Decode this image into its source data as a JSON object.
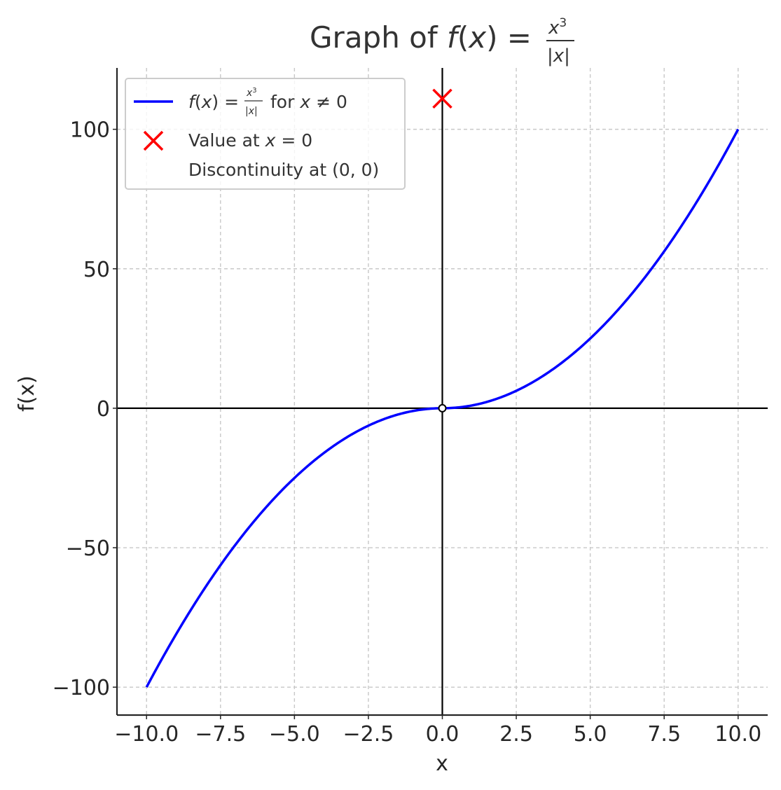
{
  "chart_data": {
    "type": "line",
    "title": "Graph of f(x) = x³/|x|",
    "xlabel": "x",
    "ylabel": "f(x)",
    "xlim": [
      -11,
      11
    ],
    "ylim": [
      -110,
      122
    ],
    "xticks": [
      -10.0,
      -7.5,
      -5.0,
      -2.5,
      0.0,
      2.5,
      5.0,
      7.5,
      10.0
    ],
    "xtick_labels": [
      "−10.0",
      "−7.5",
      "−5.0",
      "−2.5",
      "0.0",
      "2.5",
      "5.0",
      "7.5",
      "10.0"
    ],
    "yticks": [
      -100,
      -50,
      0,
      50,
      100
    ],
    "ytick_labels": [
      "−100",
      "−50",
      "0",
      "50",
      "100"
    ],
    "grid": true,
    "legend_position": "top-left",
    "series": [
      {
        "name": "f(x) = x³/|x| for x ≠ 0",
        "kind": "line",
        "function": "x*|x|",
        "x_range": [
          -10,
          10
        ],
        "color": "#0000ff"
      },
      {
        "name": "Value at x = 0",
        "kind": "marker",
        "marker": "x",
        "x": 0,
        "y": 111,
        "color": "#ff0000"
      },
      {
        "name": "Discontinuity at (0, 0)",
        "kind": "marker",
        "marker": "open-circle",
        "x": 0,
        "y": 0,
        "color": "#000000"
      }
    ]
  }
}
